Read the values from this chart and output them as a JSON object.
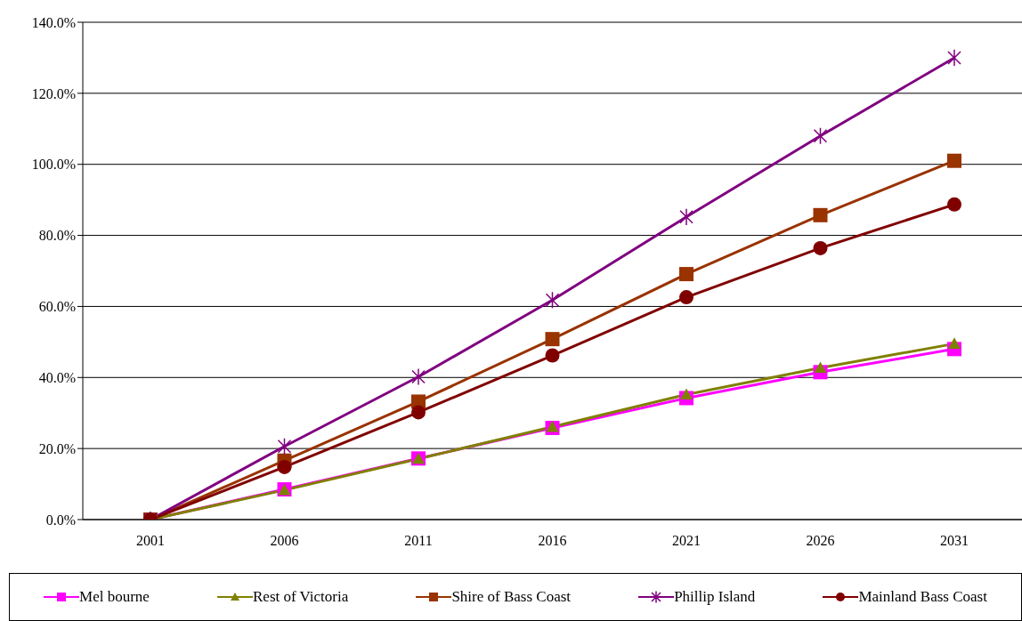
{
  "chart_data": {
    "type": "line",
    "categories": [
      "2001",
      "2006",
      "2011",
      "2016",
      "2021",
      "2026",
      "2031"
    ],
    "series": [
      {
        "name": "Mel bourne",
        "color": "#ff00ff",
        "marker": "square",
        "values": [
          0,
          8.5,
          17.2,
          25.8,
          34.2,
          41.5,
          48
        ]
      },
      {
        "name": "Rest of Victoria",
        "color": "#808000",
        "marker": "triangle",
        "values": [
          0,
          8.3,
          17.1,
          26.1,
          35.2,
          42.7,
          49.5
        ]
      },
      {
        "name": "Shire of Bass Coast",
        "color": "#993300",
        "marker": "square",
        "values": [
          0,
          16.6,
          33.2,
          50.8,
          69.1,
          85.7,
          101
        ]
      },
      {
        "name": "Phillip Island",
        "color": "#800080",
        "marker": "cross",
        "values": [
          0,
          20.6,
          40.2,
          61.8,
          85.2,
          108,
          130
        ]
      },
      {
        "name": "Mainland Bass Coast",
        "color": "#800000",
        "marker": "circle",
        "values": [
          0,
          14.8,
          30.2,
          46.2,
          62.6,
          76.4,
          88.7
        ]
      }
    ],
    "ylim": [
      0,
      140
    ],
    "yticks": [
      {
        "value": 0,
        "label": "0.0%"
      },
      {
        "value": 20,
        "label": "20.0%"
      },
      {
        "value": 40,
        "label": "40.0%"
      },
      {
        "value": 60,
        "label": "60.0%"
      },
      {
        "value": 80,
        "label": "80.0%"
      },
      {
        "value": 100,
        "label": "100.0%"
      },
      {
        "value": 120,
        "label": "120.0%"
      },
      {
        "value": 140,
        "label": "140.0%"
      }
    ],
    "grid": "y",
    "legend": "bottom",
    "line_style": "solid"
  }
}
